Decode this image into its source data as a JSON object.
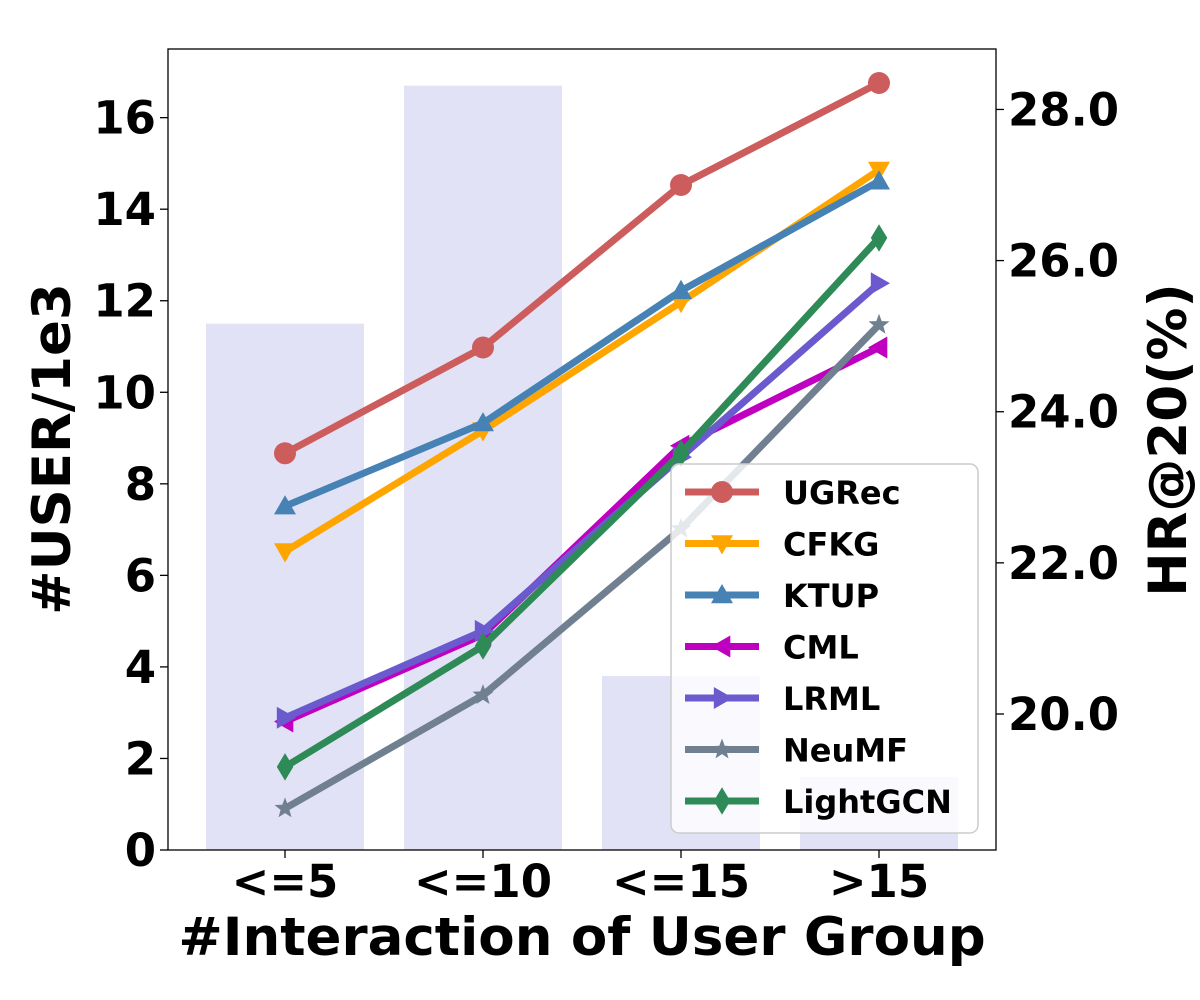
{
  "chart_data": {
    "type": "bar+line",
    "categories": [
      "<=5",
      "<=10",
      "<=15",
      ">15"
    ],
    "xlabel": "#Interaction of User Group",
    "ylabel_left": "#USER/1e3",
    "ylabel_right": "HR@20(%)",
    "ylim_left": [
      0,
      17.5
    ],
    "ylim_right": [
      18.2,
      28.8
    ],
    "yticks_left": [
      "0",
      "2",
      "4",
      "6",
      "8",
      "10",
      "12",
      "14",
      "16"
    ],
    "yticks_right": [
      "20.0",
      "22.0",
      "24.0",
      "26.0",
      "28.0"
    ],
    "bars": {
      "name": "#USER/1e3",
      "axis": "left",
      "color": "#e2e2f6",
      "values": [
        11.5,
        16.7,
        3.8,
        1.6
      ]
    },
    "series": [
      {
        "name": "UGRec",
        "color": "#cd5c5c",
        "marker": "circle",
        "values": [
          23.45,
          24.85,
          27.0,
          28.35
        ]
      },
      {
        "name": "CFKG",
        "color": "#ffa500",
        "marker": "triangle-down",
        "values": [
          22.15,
          23.75,
          25.45,
          27.2
        ]
      },
      {
        "name": "KTUP",
        "color": "#4682b4",
        "marker": "triangle-up",
        "values": [
          22.75,
          23.85,
          25.6,
          27.05
        ]
      },
      {
        "name": "CML",
        "color": "#c000c0",
        "marker": "triangle-left",
        "values": [
          19.9,
          21.05,
          23.55,
          24.85
        ]
      },
      {
        "name": "LRML",
        "color": "#6a5acd",
        "marker": "triangle-right",
        "values": [
          19.95,
          21.1,
          23.4,
          25.7
        ]
      },
      {
        "name": "NeuMF",
        "color": "#708090",
        "marker": "star",
        "values": [
          18.75,
          20.25,
          22.45,
          25.15
        ]
      },
      {
        "name": "LightGCN",
        "color": "#2e8b57",
        "marker": "diamond",
        "values": [
          19.3,
          20.9,
          23.45,
          26.3
        ]
      }
    ],
    "legend": "lower-right",
    "grid": false
  }
}
